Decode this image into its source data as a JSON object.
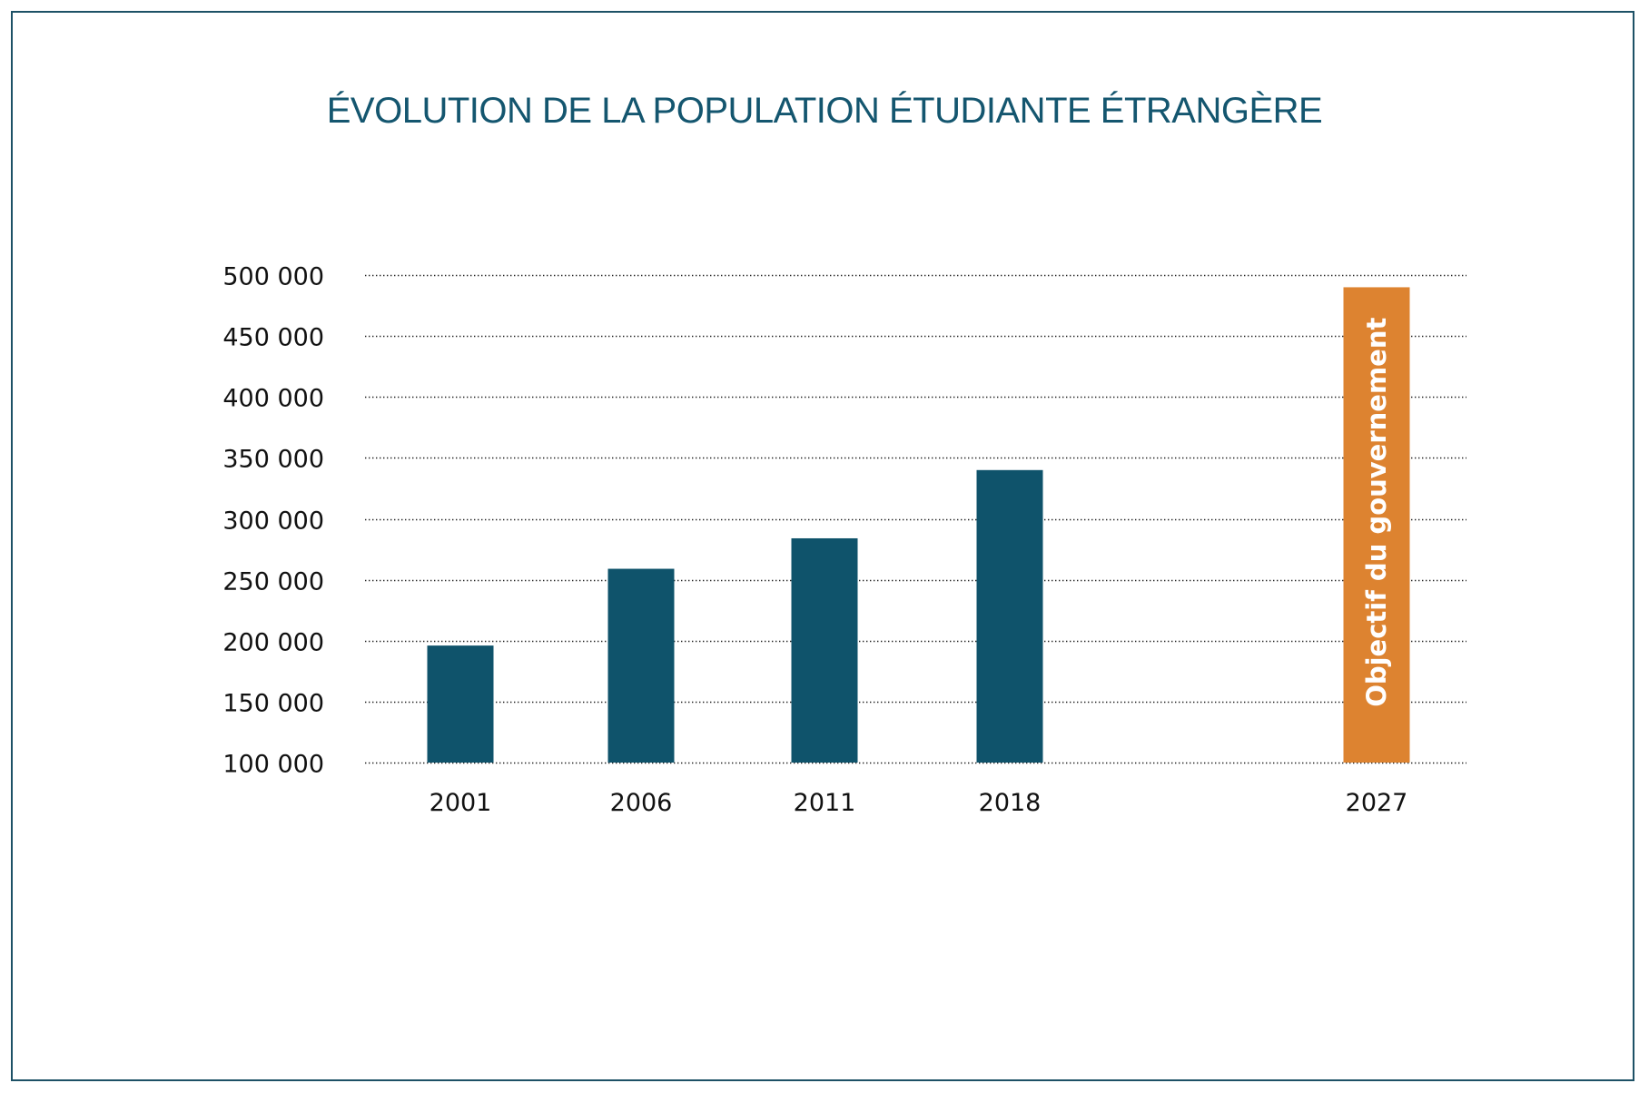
{
  "chart_data": {
    "type": "bar",
    "title": "ÉVOLUTION DE LA POPULATION ÉTUDIANTE ÉTRANGÈRE",
    "xlabel": "",
    "ylabel": "",
    "categories": [
      "2001",
      "2006",
      "2011",
      "2018",
      "2027"
    ],
    "values": [
      196000,
      259000,
      284000,
      340000,
      490000
    ],
    "ylim": [
      100000,
      500000
    ],
    "yticks": [
      100000,
      150000,
      200000,
      250000,
      300000,
      350000,
      400000,
      450000,
      500000
    ],
    "ytick_labels": [
      "100 000",
      "150 000",
      "200 000",
      "250 000",
      "300 000",
      "350 000",
      "400 000",
      "450 000",
      "500 000"
    ],
    "grid": "horizontal-dotted",
    "legend": "none",
    "bar_colors": [
      "#0f536b",
      "#0f536b",
      "#0f536b",
      "#0f536b",
      "#dd8330"
    ],
    "annotations": [
      {
        "category": "2027",
        "text": "Objectif du gouvernement",
        "orientation": "vertical"
      }
    ]
  },
  "colors": {
    "primary": "#0f536b",
    "target": "#dd8330",
    "title": "#14566f",
    "frame": "#1d5166"
  }
}
